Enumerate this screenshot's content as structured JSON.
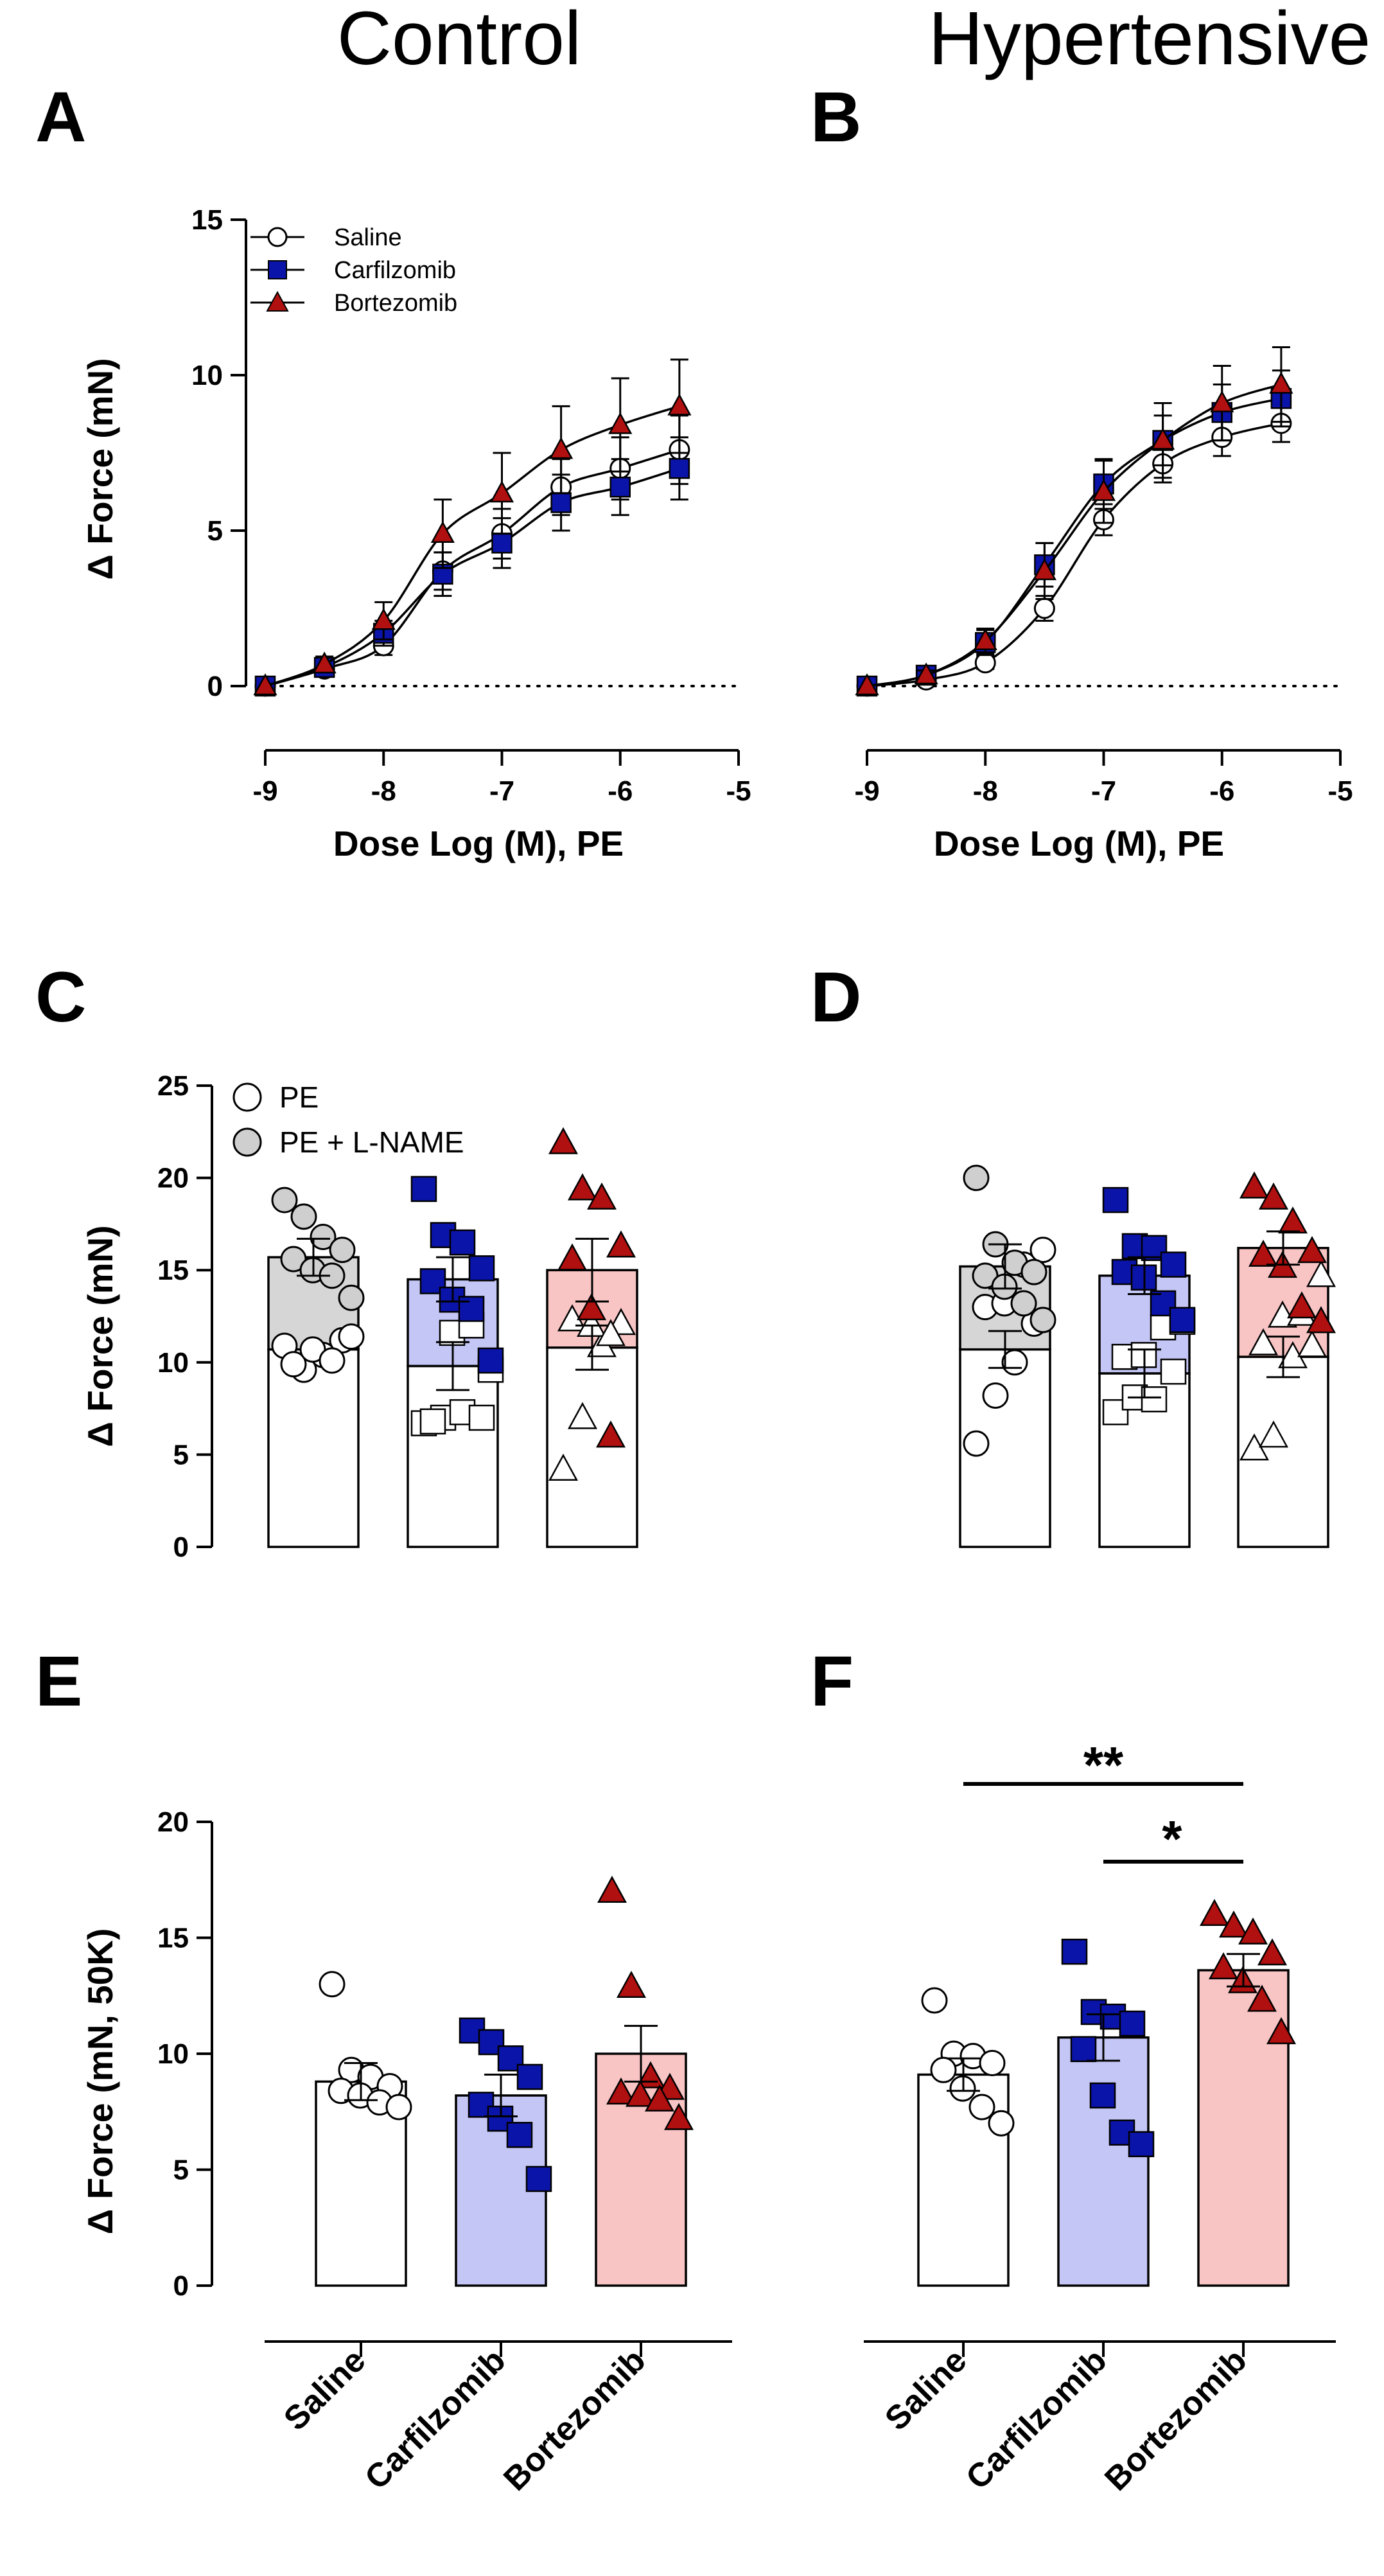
{
  "figure": {
    "column_titles": [
      "Control",
      "Hypertensive"
    ]
  },
  "colors": {
    "saline_marker": "#ffffff",
    "carfilzomib_marker": "#0b14a8",
    "bortezomib_marker": "#b0100f",
    "carfilzomib_bar": "#c4c6f5",
    "bortezomib_bar": "#f8c4c4",
    "lname_marker": "#cfcfcf",
    "saline_lname_bar": "#d6d6d6"
  },
  "chart_data": [
    {
      "panel": "A",
      "type": "line",
      "title": "",
      "xlabel": "Dose Log (M), PE",
      "ylabel": "Δ Force (mN)",
      "xlim": [
        -9,
        -5
      ],
      "ylim": [
        0,
        15
      ],
      "xticks": [
        "-9",
        "-8",
        "-7",
        "-6",
        "-5"
      ],
      "yticks": [
        "0",
        "5",
        "10",
        "15"
      ],
      "legend": [
        "Saline",
        "Carfilzomib",
        "Bortezomib"
      ],
      "legend_position": "top-left",
      "x": [
        -9,
        -8.5,
        -8,
        -7.5,
        -7,
        -6.5,
        -6,
        -5.5
      ],
      "series": [
        {
          "name": "Saline",
          "marker": "circle",
          "values": [
            0,
            0.55,
            1.3,
            3.7,
            4.9,
            6.4,
            7.0,
            7.6
          ],
          "errors": [
            0,
            0.2,
            0.3,
            0.6,
            0.8,
            0.9,
            1.0,
            1.1
          ]
        },
        {
          "name": "Carfilzomib",
          "marker": "square",
          "values": [
            0,
            0.6,
            1.7,
            3.6,
            4.6,
            5.9,
            6.4,
            7.0
          ],
          "errors": [
            0,
            0.2,
            0.4,
            0.7,
            0.8,
            0.9,
            0.9,
            1.0
          ]
        },
        {
          "name": "Bortezomib",
          "marker": "triangle",
          "values": [
            0,
            0.7,
            2.1,
            4.9,
            6.2,
            7.6,
            8.4,
            9.0
          ],
          "errors": [
            0,
            0.25,
            0.6,
            1.1,
            1.3,
            1.4,
            1.5,
            1.5
          ]
        }
      ]
    },
    {
      "panel": "B",
      "type": "line",
      "title": "",
      "xlabel": "Dose Log (M), PE",
      "ylabel": "",
      "xlim": [
        -9,
        -5
      ],
      "ylim": [
        0,
        15
      ],
      "xticks": [
        "-9",
        "-8",
        "-7",
        "-6",
        "-5"
      ],
      "yticks": [],
      "x": [
        -9,
        -8.5,
        -8,
        -7.5,
        -7,
        -6.5,
        -6,
        -5.5
      ],
      "series": [
        {
          "name": "Saline",
          "marker": "circle",
          "values": [
            0,
            0.2,
            0.75,
            2.5,
            5.35,
            7.15,
            8.0,
            8.45
          ],
          "errors": [
            0,
            0.1,
            0.2,
            0.4,
            0.5,
            0.6,
            0.6,
            0.6
          ]
        },
        {
          "name": "Carfilzomib",
          "marker": "square",
          "values": [
            0,
            0.35,
            1.4,
            3.9,
            6.5,
            7.9,
            8.8,
            9.25
          ],
          "errors": [
            0,
            0.15,
            0.4,
            0.7,
            0.8,
            0.8,
            0.9,
            0.9
          ]
        },
        {
          "name": "Bortezomib",
          "marker": "triangle",
          "values": [
            0,
            0.35,
            1.45,
            3.7,
            6.25,
            7.9,
            9.1,
            9.7
          ],
          "errors": [
            0,
            0.15,
            0.4,
            0.9,
            1.0,
            1.2,
            1.2,
            1.2
          ]
        }
      ]
    },
    {
      "panel": "C",
      "type": "bar",
      "title": "",
      "xlabel": "",
      "ylabel": "Δ Force (mN)",
      "ylim": [
        0,
        25
      ],
      "yticks": [
        "0",
        "5",
        "10",
        "15",
        "20",
        "25"
      ],
      "legend": [
        "PE",
        "PE + L-NAME"
      ],
      "legend_position": "top-left",
      "categories": [
        "Saline",
        "Carfilzomib",
        "Bortezomib"
      ],
      "series": [
        {
          "name": "PE",
          "values": [
            10.7,
            9.8,
            10.8
          ],
          "errors": [
            0,
            1.3,
            1.2
          ],
          "points": [
            [
              10.9,
              9.6,
              10.4,
              11.2,
              9.9,
              10.7,
              10.1,
              11.4
            ],
            [
              6.7,
              7.0,
              7.3,
              7.0,
              6.8,
              11.6,
              12.0,
              9.6
            ],
            [
              4.2,
              7.0,
              10.9,
              12.1,
              12.3,
              12.0,
              11.5
            ]
          ]
        },
        {
          "name": "PE + L-NAME",
          "values": [
            15.7,
            14.5,
            15.0
          ],
          "errors": [
            1.0,
            1.2,
            1.7
          ],
          "points": [
            [
              18.8,
              17.9,
              16.8,
              16.1,
              15.6,
              15.0,
              14.7,
              13.5
            ],
            [
              19.4,
              16.9,
              16.5,
              15.1,
              14.4,
              13.4,
              12.9,
              10.1
            ],
            [
              21.9,
              19.4,
              18.9,
              16.3,
              15.6,
              12.9,
              6.0
            ]
          ]
        }
      ]
    },
    {
      "panel": "D",
      "type": "bar",
      "title": "",
      "xlabel": "",
      "ylabel": "",
      "ylim": [
        0,
        25
      ],
      "categories": [
        "Saline",
        "Carfilzomib",
        "Bortezomib"
      ],
      "series": [
        {
          "name": "PE",
          "values": [
            10.7,
            9.4,
            10.3
          ],
          "errors": [
            1.0,
            1.3,
            1.1
          ],
          "points": [
            [
              5.6,
              8.2,
              10.0,
              12.1,
              13.0,
              13.2,
              15.3,
              16.1
            ],
            [
              7.3,
              8.1,
              8.0,
              9.5,
              10.3,
              10.4,
              11.9,
              12.2
            ],
            [
              5.3,
              6.0,
              10.3,
              10.9,
              11.0,
              12.5,
              12.6,
              14.7
            ]
          ]
        },
        {
          "name": "PE + L-NAME",
          "values": [
            15.2,
            14.7,
            16.2
          ],
          "errors": [
            1.2,
            1.0,
            0.9
          ],
          "points": [
            [
              20.0,
              16.4,
              15.4,
              14.9,
              14.7,
              14.1,
              13.2,
              12.3
            ],
            [
              18.8,
              16.3,
              16.2,
              15.3,
              14.9,
              14.6,
              13.2,
              12.3
            ],
            [
              19.5,
              18.9,
              17.6,
              16.0,
              15.8,
              15.2,
              13.0,
              12.2
            ]
          ]
        }
      ]
    },
    {
      "panel": "E",
      "type": "bar",
      "title": "",
      "xlabel": "",
      "ylabel": "Δ Force (mN, 50K)",
      "ylim": [
        0,
        20
      ],
      "yticks": [
        "0",
        "5",
        "10",
        "15",
        "20"
      ],
      "categories": [
        "Saline",
        "Carfilzomib",
        "Bortezomib"
      ],
      "values": [
        8.8,
        8.2,
        10.0
      ],
      "errors": [
        0.8,
        0.9,
        1.2
      ],
      "points": [
        [
          13.0,
          9.3,
          9.0,
          8.6,
          8.4,
          8.2,
          7.9,
          7.7
        ],
        [
          11.0,
          10.5,
          9.8,
          9.0,
          7.8,
          7.2,
          6.5,
          4.6
        ],
        [
          17.0,
          12.9,
          9.0,
          8.5,
          8.3,
          8.2,
          8.0,
          7.2
        ]
      ]
    },
    {
      "panel": "F",
      "type": "bar",
      "title": "",
      "xlabel": "",
      "ylabel": "",
      "ylim": [
        0,
        20
      ],
      "categories": [
        "Saline",
        "Carfilzomib",
        "Bortezomib"
      ],
      "values": [
        9.1,
        10.7,
        13.6
      ],
      "errors": [
        0.7,
        1.0,
        0.7
      ],
      "points": [
        [
          12.3,
          10.0,
          9.9,
          9.6,
          9.3,
          8.5,
          7.7,
          7.0
        ],
        [
          14.4,
          11.8,
          11.6,
          11.3,
          10.2,
          8.2,
          6.6,
          6.1
        ],
        [
          16.0,
          15.5,
          15.2,
          14.3,
          13.7,
          13.1,
          12.3,
          10.9
        ]
      ],
      "significance": [
        {
          "from": "Saline",
          "to": "Bortezomib",
          "label": "**"
        },
        {
          "from": "Carfilzomib",
          "to": "Bortezomib",
          "label": "*"
        }
      ]
    }
  ]
}
